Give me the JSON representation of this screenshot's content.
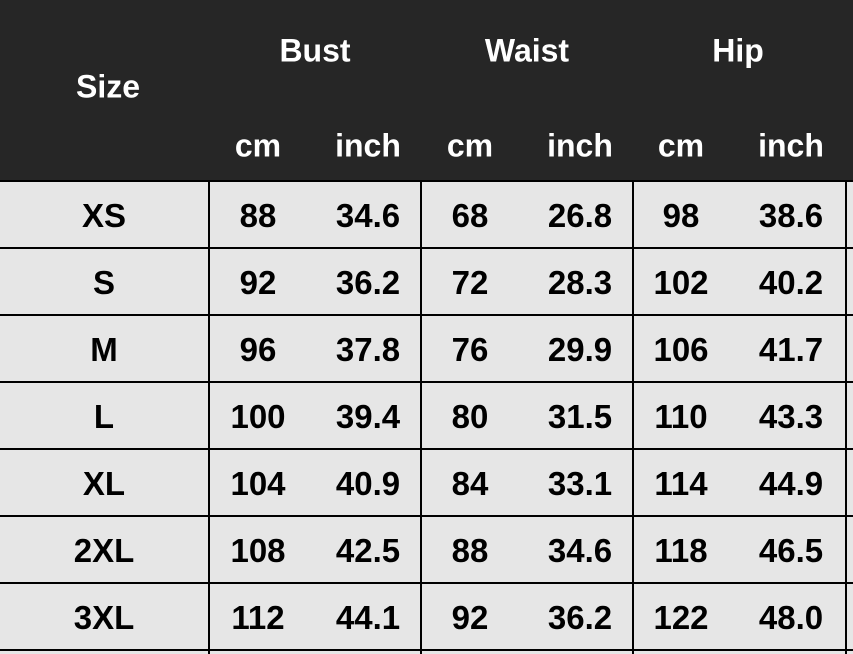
{
  "header": {
    "size_label": "Size",
    "groups": [
      "Bust",
      "Waist",
      "Hip"
    ],
    "units": [
      "cm",
      "inch",
      "cm",
      "inch",
      "cm",
      "inch"
    ]
  },
  "rows": [
    {
      "size": "XS",
      "values": [
        "88",
        "34.6",
        "68",
        "26.8",
        "98",
        "38.6"
      ]
    },
    {
      "size": "S",
      "values": [
        "92",
        "36.2",
        "72",
        "28.3",
        "102",
        "40.2"
      ]
    },
    {
      "size": "M",
      "values": [
        "96",
        "37.8",
        "76",
        "29.9",
        "106",
        "41.7"
      ]
    },
    {
      "size": "L",
      "values": [
        "100",
        "39.4",
        "80",
        "31.5",
        "110",
        "43.3"
      ]
    },
    {
      "size": "XL",
      "values": [
        "104",
        "40.9",
        "84",
        "33.1",
        "114",
        "44.9"
      ]
    },
    {
      "size": "2XL",
      "values": [
        "108",
        "42.5",
        "88",
        "34.6",
        "118",
        "46.5"
      ]
    },
    {
      "size": "3XL",
      "values": [
        "112",
        "44.1",
        "92",
        "36.2",
        "122",
        "48.0"
      ]
    }
  ],
  "colors": {
    "header_bg": "#262626",
    "body_bg": "#e6e6e6",
    "grid": "#000000"
  }
}
